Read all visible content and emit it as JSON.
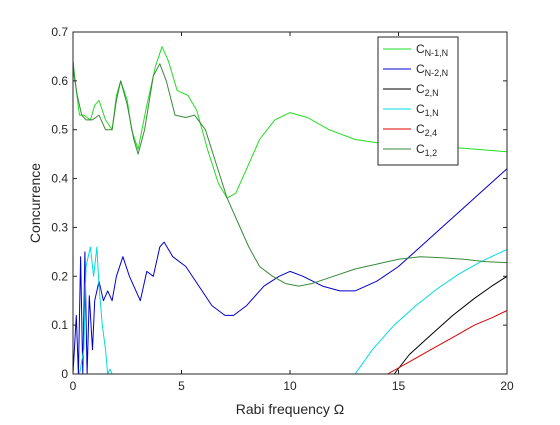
{
  "chart_data": {
    "type": "line",
    "xlabel": "Rabi frequency Ω",
    "ylabel": "Concurrence",
    "xlim": [
      0,
      20
    ],
    "ylim": [
      0,
      0.7
    ],
    "xticks": [
      0,
      5,
      10,
      15,
      20
    ],
    "yticks": [
      0,
      0.1,
      0.2,
      0.3,
      0.4,
      0.5,
      0.6,
      0.7
    ],
    "grid": false,
    "legend_position": "top-right",
    "series": [
      {
        "name": "C",
        "subscript": "N-1,N",
        "color": "#22dd22",
        "points": [
          [
            0,
            0.64
          ],
          [
            0.05,
            0.62
          ],
          [
            0.15,
            0.58
          ],
          [
            0.3,
            0.53
          ],
          [
            0.5,
            0.53
          ],
          [
            0.8,
            0.52
          ],
          [
            1.0,
            0.55
          ],
          [
            1.2,
            0.56
          ],
          [
            1.5,
            0.52
          ],
          [
            1.8,
            0.5
          ],
          [
            2.0,
            0.57
          ],
          [
            2.2,
            0.6
          ],
          [
            2.5,
            0.56
          ],
          [
            2.7,
            0.5
          ],
          [
            3.0,
            0.46
          ],
          [
            3.4,
            0.55
          ],
          [
            3.8,
            0.63
          ],
          [
            4.1,
            0.67
          ],
          [
            4.4,
            0.64
          ],
          [
            4.8,
            0.58
          ],
          [
            5.3,
            0.57
          ],
          [
            5.7,
            0.54
          ],
          [
            6.2,
            0.46
          ],
          [
            6.7,
            0.39
          ],
          [
            7.1,
            0.36
          ],
          [
            7.5,
            0.37
          ],
          [
            8.0,
            0.42
          ],
          [
            8.6,
            0.48
          ],
          [
            9.3,
            0.52
          ],
          [
            10.0,
            0.535
          ],
          [
            10.8,
            0.525
          ],
          [
            11.8,
            0.5
          ],
          [
            13.0,
            0.48
          ],
          [
            14.5,
            0.47
          ],
          [
            16.0,
            0.468
          ],
          [
            18.0,
            0.462
          ],
          [
            20.0,
            0.455
          ]
        ]
      },
      {
        "name": "C",
        "subscript": "N-2,N",
        "color": "#0000cc",
        "points": [
          [
            0,
            0
          ],
          [
            0.15,
            0.12
          ],
          [
            0.25,
            0
          ],
          [
            0.35,
            0.24
          ],
          [
            0.45,
            0
          ],
          [
            0.55,
            0.25
          ],
          [
            0.65,
            0
          ],
          [
            0.75,
            0.16
          ],
          [
            0.9,
            0.05
          ],
          [
            1.0,
            0.15
          ],
          [
            1.2,
            0.19
          ],
          [
            1.4,
            0.15
          ],
          [
            1.6,
            0.17
          ],
          [
            1.8,
            0.15
          ],
          [
            2.0,
            0.2
          ],
          [
            2.3,
            0.24
          ],
          [
            2.6,
            0.2
          ],
          [
            2.8,
            0.18
          ],
          [
            3.1,
            0.15
          ],
          [
            3.4,
            0.21
          ],
          [
            3.7,
            0.2
          ],
          [
            4.0,
            0.26
          ],
          [
            4.2,
            0.27
          ],
          [
            4.6,
            0.24
          ],
          [
            5.2,
            0.22
          ],
          [
            5.8,
            0.18
          ],
          [
            6.4,
            0.14
          ],
          [
            7.0,
            0.12
          ],
          [
            7.4,
            0.12
          ],
          [
            8.0,
            0.14
          ],
          [
            8.8,
            0.18
          ],
          [
            9.5,
            0.2
          ],
          [
            10.0,
            0.21
          ],
          [
            10.6,
            0.2
          ],
          [
            11.5,
            0.18
          ],
          [
            12.3,
            0.17
          ],
          [
            13.0,
            0.17
          ],
          [
            14.0,
            0.19
          ],
          [
            15.0,
            0.22
          ],
          [
            16.0,
            0.26
          ],
          [
            17.0,
            0.3
          ],
          [
            18.0,
            0.34
          ],
          [
            19.0,
            0.38
          ],
          [
            20.0,
            0.42
          ]
        ]
      },
      {
        "name": "C",
        "subscript": "2,N",
        "color": "#000000",
        "points": [
          [
            0,
            0
          ],
          [
            14.8,
            0
          ],
          [
            15.5,
            0.04
          ],
          [
            16.5,
            0.08
          ],
          [
            17.5,
            0.12
          ],
          [
            18.5,
            0.155
          ],
          [
            19.3,
            0.18
          ],
          [
            20.0,
            0.2
          ]
        ]
      },
      {
        "name": "C",
        "subscript": "1,N",
        "color": "#00dddd",
        "points": [
          [
            0,
            0
          ],
          [
            0.3,
            0
          ],
          [
            0.5,
            0.05
          ],
          [
            0.6,
            0.22
          ],
          [
            0.8,
            0.26
          ],
          [
            0.95,
            0.2
          ],
          [
            1.1,
            0.26
          ],
          [
            1.2,
            0.18
          ],
          [
            1.35,
            0.1
          ],
          [
            1.5,
            0.05
          ],
          [
            1.6,
            0
          ],
          [
            1.7,
            0.01
          ],
          [
            1.8,
            0
          ],
          [
            13.0,
            0
          ],
          [
            13.8,
            0.05
          ],
          [
            14.8,
            0.1
          ],
          [
            15.8,
            0.14
          ],
          [
            16.8,
            0.175
          ],
          [
            17.8,
            0.205
          ],
          [
            18.8,
            0.23
          ],
          [
            20.0,
            0.255
          ]
        ]
      },
      {
        "name": "C",
        "subscript": "2,4",
        "color": "#dd0000",
        "points": [
          [
            0,
            0
          ],
          [
            14.5,
            0
          ],
          [
            15.5,
            0.025
          ],
          [
            16.5,
            0.05
          ],
          [
            17.5,
            0.075
          ],
          [
            18.5,
            0.1
          ],
          [
            19.3,
            0.115
          ],
          [
            20.0,
            0.13
          ]
        ]
      },
      {
        "name": "C",
        "subscript": "1,2",
        "color": "#3a8a3a",
        "points": [
          [
            0,
            0.64
          ],
          [
            0.05,
            0.61
          ],
          [
            0.2,
            0.57
          ],
          [
            0.4,
            0.53
          ],
          [
            0.6,
            0.52
          ],
          [
            0.9,
            0.52
          ],
          [
            1.2,
            0.53
          ],
          [
            1.5,
            0.5
          ],
          [
            1.8,
            0.5
          ],
          [
            2.0,
            0.56
          ],
          [
            2.2,
            0.6
          ],
          [
            2.5,
            0.55
          ],
          [
            2.8,
            0.48
          ],
          [
            3.0,
            0.45
          ],
          [
            3.3,
            0.5
          ],
          [
            3.7,
            0.61
          ],
          [
            4.0,
            0.635
          ],
          [
            4.3,
            0.6
          ],
          [
            4.7,
            0.53
          ],
          [
            5.2,
            0.525
          ],
          [
            5.6,
            0.53
          ],
          [
            6.1,
            0.5
          ],
          [
            6.6,
            0.43
          ],
          [
            7.1,
            0.36
          ],
          [
            7.6,
            0.31
          ],
          [
            8.1,
            0.26
          ],
          [
            8.6,
            0.22
          ],
          [
            9.2,
            0.2
          ],
          [
            9.8,
            0.185
          ],
          [
            10.4,
            0.18
          ],
          [
            11.0,
            0.185
          ],
          [
            12.0,
            0.2
          ],
          [
            13.0,
            0.215
          ],
          [
            14.0,
            0.225
          ],
          [
            15.0,
            0.235
          ],
          [
            16.0,
            0.24
          ],
          [
            17.0,
            0.238
          ],
          [
            18.0,
            0.235
          ],
          [
            19.0,
            0.23
          ],
          [
            20.0,
            0.228
          ]
        ]
      }
    ]
  }
}
